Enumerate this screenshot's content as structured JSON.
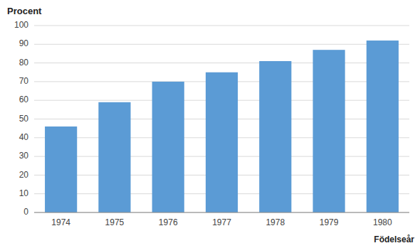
{
  "chart_data": {
    "type": "bar",
    "categories": [
      "1974",
      "1975",
      "1976",
      "1977",
      "1978",
      "1979",
      "1980"
    ],
    "values": [
      46,
      59,
      70,
      75,
      81,
      87,
      92
    ],
    "color": "#5b9bd5",
    "ylabel": "Procent",
    "xlabel": "Födelseår",
    "ylim": [
      0,
      100
    ],
    "yticks": [
      0,
      10,
      20,
      30,
      40,
      50,
      60,
      70,
      80,
      90,
      100
    ],
    "grid": true
  }
}
